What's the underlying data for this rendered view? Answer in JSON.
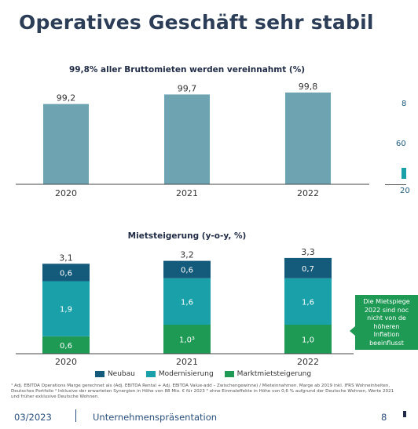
{
  "page": {
    "title": "Operatives Geschäft sehr stabil"
  },
  "chart_data": [
    {
      "type": "bar",
      "title": "99,8% aller Bruttomieten werden vereinnahmt (%)",
      "categories": [
        "2020",
        "2021",
        "2022"
      ],
      "values": [
        99.2,
        99.7,
        99.8
      ],
      "value_labels": [
        "99,2",
        "99,7",
        "99,8"
      ],
      "color": "#6ea3b2",
      "legend": "none",
      "grid": false
    },
    {
      "type": "bar",
      "stacked": true,
      "title": "Mietsteigerung (y-o-y, %)",
      "categories": [
        "2020",
        "2021",
        "2022"
      ],
      "totals": [
        3.1,
        3.2,
        3.3
      ],
      "total_labels": [
        "3,1",
        "3,2",
        "3,3"
      ],
      "series": [
        {
          "name": "Marktmietsteigerung",
          "values": [
            0.6,
            1.0,
            1.0
          ],
          "labels": [
            "0,6",
            "1,0³",
            "1,0"
          ],
          "color": "#1e9a55"
        },
        {
          "name": "Modernisierung",
          "values": [
            1.9,
            1.6,
            1.6
          ],
          "labels": [
            "1,9",
            "1,6",
            "1,6"
          ],
          "color": "#1aa0a8"
        },
        {
          "name": "Neubau",
          "values": [
            0.6,
            0.6,
            0.7
          ],
          "labels": [
            "0,6",
            "0,6",
            "0,7"
          ],
          "color": "#145a7a"
        }
      ],
      "legend_order": [
        "Neubau",
        "Modernisierung",
        "Marktmietsteigerung"
      ],
      "legend": "bottom",
      "grid": false
    }
  ],
  "side_peek": {
    "label_top": "8",
    "label_mid": "60",
    "label_bottom": "20"
  },
  "callout": {
    "lines": [
      "Die Mietspiege",
      "2022 sind noc",
      "nicht von de",
      "höheren",
      "Inflation",
      "beeinflusst"
    ]
  },
  "footnote": "¹ Adj. EBITDA Operations Marge gerechnet als (Adj. EBITDA Rental + Adj. EBITDA Value-add – Zwischengewinne) / Mieteinnahmen. Marge ab 2019 inkl. IFRS Wohneinheiten, Deutsches Portfolio ² Inklusive der erwarteten Synergien in Höhe von 88 Mio. € für 2023 ³ ohne Einmaleffekte in Höhe von 0,6 % aufgrund der Deutsche Wohnen, Werte 2021 und früher exklusive Deutsche Wohnen.",
  "footer": {
    "date": "03/2023",
    "name": "Unternehmenspräsentation",
    "page": "8"
  }
}
